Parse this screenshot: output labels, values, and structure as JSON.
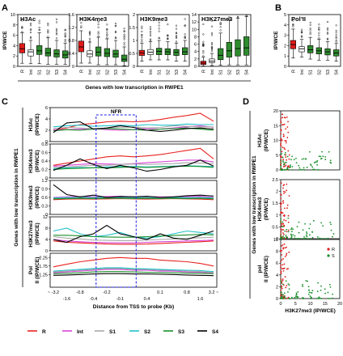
{
  "panels": {
    "A": {
      "letter": "A"
    },
    "B": {
      "letter": "B"
    },
    "C": {
      "letter": "C"
    },
    "D": {
      "letter": "D"
    }
  },
  "colors": {
    "R": "#e8231f",
    "Int": "#d946d9",
    "S1": "#a8a8a8",
    "S2": "#22c1c8",
    "S3": "#1a8f2b",
    "S4": "#000000",
    "box_R": "#e01b1b",
    "box_Int": "#ffffff",
    "box_S": "#2e8b2e"
  },
  "chart_data": [
    {
      "type": "box",
      "panel": "A",
      "group_label": "Genes with low transcription in RWPE1",
      "ylabel": "IP/WCE",
      "categories": [
        "R",
        "Int",
        "S1",
        "S2",
        "S3",
        "S4"
      ],
      "plots": [
        {
          "title": "H3Ac",
          "ylim": [
            0,
            10
          ],
          "yticks": [
            0,
            2,
            4,
            6,
            8,
            10
          ],
          "boxes": [
            {
              "q1": 2.6,
              "med": 3.4,
              "q3": 4.4,
              "lo": 0.6,
              "hi": 6.5
            },
            {
              "q1": 2.0,
              "med": 2.8,
              "q3": 3.2,
              "lo": 0.5,
              "hi": 5.0
            },
            {
              "q1": 2.3,
              "med": 3.0,
              "q3": 4.0,
              "lo": 0.5,
              "hi": 6.5
            },
            {
              "q1": 2.0,
              "med": 2.6,
              "q3": 3.5,
              "lo": 0.4,
              "hi": 5.5
            },
            {
              "q1": 1.8,
              "med": 2.4,
              "q3": 3.2,
              "lo": 0.4,
              "hi": 5.0
            },
            {
              "q1": 1.6,
              "med": 2.2,
              "q3": 3.0,
              "lo": 0.4,
              "hi": 4.5
            }
          ]
        },
        {
          "title": "H3K4me3",
          "ylim": [
            0,
            1.6
          ],
          "yticks": [
            0,
            0.4,
            0.8,
            1.2,
            1.6
          ],
          "boxes": [
            {
              "q1": 0.45,
              "med": 0.6,
              "q3": 0.78,
              "lo": 0.1,
              "hi": 1.1
            },
            {
              "q1": 0.3,
              "med": 0.38,
              "q3": 0.48,
              "lo": 0.1,
              "hi": 0.75
            },
            {
              "q1": 0.32,
              "med": 0.44,
              "q3": 0.6,
              "lo": 0.05,
              "hi": 0.9
            },
            {
              "q1": 0.3,
              "med": 0.4,
              "q3": 0.55,
              "lo": 0.05,
              "hi": 0.85
            },
            {
              "q1": 0.28,
              "med": 0.38,
              "q3": 0.5,
              "lo": 0.05,
              "hi": 0.8
            },
            {
              "q1": 0.15,
              "med": 0.22,
              "q3": 0.35,
              "lo": 0.02,
              "hi": 0.6
            }
          ]
        },
        {
          "title": "H3K9me3",
          "ylim": [
            0,
            2
          ],
          "yticks": [
            0,
            0.5,
            1.0,
            1.5,
            2.0
          ],
          "boxes": [
            {
              "q1": 0.42,
              "med": 0.52,
              "q3": 0.62,
              "lo": 0.2,
              "hi": 0.9
            },
            {
              "q1": 0.45,
              "med": 0.55,
              "q3": 0.65,
              "lo": 0.25,
              "hi": 0.95
            },
            {
              "q1": 0.45,
              "med": 0.58,
              "q3": 0.7,
              "lo": 0.25,
              "hi": 1.0
            },
            {
              "q1": 0.45,
              "med": 0.56,
              "q3": 0.68,
              "lo": 0.25,
              "hi": 0.95
            },
            {
              "q1": 0.42,
              "med": 0.54,
              "q3": 0.65,
              "lo": 0.2,
              "hi": 0.9
            },
            {
              "q1": 0.45,
              "med": 0.56,
              "q3": 0.72,
              "lo": 0.2,
              "hi": 1.0
            }
          ]
        },
        {
          "title": "H3K27me3",
          "ylim": [
            0,
            14
          ],
          "yticks": [
            0,
            2,
            4,
            6,
            8,
            10,
            12,
            14
          ],
          "boxes": [
            {
              "q1": 0.5,
              "med": 0.9,
              "q3": 1.4,
              "lo": 0.1,
              "hi": 2.5
            },
            {
              "q1": 1.0,
              "med": 1.4,
              "q3": 2.0,
              "lo": 0.2,
              "hi": 3.5
            },
            {
              "q1": 1.8,
              "med": 3.0,
              "q3": 4.8,
              "lo": 0.3,
              "hi": 9.0
            },
            {
              "q1": 2.5,
              "med": 4.2,
              "q3": 6.5,
              "lo": 0.4,
              "hi": 12.5
            },
            {
              "q1": 2.8,
              "med": 4.8,
              "q3": 7.2,
              "lo": 0.4,
              "hi": 13.0
            },
            {
              "q1": 3.0,
              "med": 5.0,
              "q3": 8.0,
              "lo": 0.4,
              "hi": 13.5
            }
          ]
        }
      ]
    },
    {
      "type": "box",
      "panel": "B",
      "ylabel": "IP/WCE",
      "categories": [
        "R",
        "Int",
        "S1",
        "S2",
        "S3",
        "S4"
      ],
      "plots": [
        {
          "title": "Pol II",
          "ylim": [
            0,
            5
          ],
          "yticks": [
            0,
            1,
            2,
            3,
            4,
            5
          ],
          "boxes": [
            {
              "q1": 1.7,
              "med": 2.1,
              "q3": 2.5,
              "lo": 0.8,
              "hi": 3.6
            },
            {
              "q1": 1.4,
              "med": 1.7,
              "q3": 1.9,
              "lo": 0.9,
              "hi": 2.6
            },
            {
              "q1": 1.3,
              "med": 1.6,
              "q3": 2.0,
              "lo": 0.7,
              "hi": 2.8
            },
            {
              "q1": 1.2,
              "med": 1.5,
              "q3": 1.8,
              "lo": 0.6,
              "hi": 2.6
            },
            {
              "q1": 1.1,
              "med": 1.4,
              "q3": 1.7,
              "lo": 0.6,
              "hi": 2.4
            },
            {
              "q1": 1.0,
              "med": 1.3,
              "q3": 1.6,
              "lo": 0.5,
              "hi": 2.2
            }
          ]
        }
      ]
    },
    {
      "type": "line",
      "panel": "C",
      "group_label": "Genes with low transcription in RWPE1",
      "xlabel": "Distance from TSS to probe (Kb)",
      "xticks_top": [
        "~ -3.2",
        "-0.8",
        "-0.2",
        "0.1",
        "0.8",
        "3.2 ~"
      ],
      "xticks_bottom": [
        "-1.6",
        "-0.4",
        "-0.1",
        "0.4",
        "1.6"
      ],
      "nfr_label": "NFR",
      "legend": [
        "R",
        "Int",
        "S1",
        "S2",
        "S3",
        "S4"
      ],
      "plots": [
        {
          "ylabel": "H3Ac (IP/WCE)",
          "ylim": [
            0,
            6
          ],
          "yticks": [
            0,
            2,
            4,
            6
          ],
          "series": {
            "R": [
              2.0,
              2.4,
              3.0,
              3.2,
              3.5,
              3.6,
              3.5,
              3.6,
              3.9,
              4.3,
              4.6,
              5.0,
              3.6
            ],
            "Int": [
              2.1,
              2.1,
              2.2,
              2.3,
              2.1,
              2.0,
              2.1,
              2.3,
              2.2,
              2.4,
              2.6,
              2.8,
              2.5
            ],
            "S1": [
              2.3,
              2.5,
              2.4,
              2.3,
              2.4,
              2.5,
              2.6,
              2.4,
              2.5,
              2.8,
              2.7,
              2.6,
              2.6
            ],
            "S2": [
              2.6,
              2.8,
              2.9,
              2.7,
              2.8,
              2.9,
              2.8,
              3.0,
              2.9,
              2.9,
              3.1,
              3.0,
              3.0
            ],
            "S3": [
              1.9,
              2.1,
              2.0,
              2.2,
              2.3,
              2.2,
              2.1,
              2.0,
              2.2,
              2.3,
              2.4,
              2.2,
              2.0
            ],
            "S4": [
              1.6,
              3.3,
              3.5,
              2.2,
              2.4,
              2.8,
              2.5,
              2.0,
              1.8,
              2.0,
              2.3,
              2.4,
              2.2
            ]
          }
        },
        {
          "ylabel": "H3K4me3 (IP/WCE)",
          "ylim": [
            0,
            0.8
          ],
          "yticks": [
            0,
            0.2,
            0.4,
            0.6,
            0.8
          ],
          "series": {
            "R": [
              0.3,
              0.35,
              0.4,
              0.45,
              0.5,
              0.52,
              0.5,
              0.52,
              0.55,
              0.6,
              0.65,
              0.7,
              0.45
            ],
            "Int": [
              0.28,
              0.3,
              0.32,
              0.34,
              0.33,
              0.32,
              0.34,
              0.36,
              0.38,
              0.4,
              0.42,
              0.42,
              0.38
            ],
            "S1": [
              0.25,
              0.26,
              0.28,
              0.3,
              0.3,
              0.32,
              0.33,
              0.32,
              0.33,
              0.34,
              0.36,
              0.35,
              0.34
            ],
            "S2": [
              0.22,
              0.24,
              0.25,
              0.24,
              0.26,
              0.27,
              0.27,
              0.26,
              0.27,
              0.28,
              0.29,
              0.28,
              0.27
            ],
            "S3": [
              0.2,
              0.22,
              0.23,
              0.24,
              0.24,
              0.25,
              0.26,
              0.25,
              0.26,
              0.27,
              0.28,
              0.27,
              0.25
            ],
            "S4": [
              0.18,
              0.3,
              0.45,
              0.32,
              0.22,
              0.3,
              0.24,
              0.16,
              0.2,
              0.26,
              0.3,
              0.42,
              0.28
            ]
          }
        },
        {
          "ylabel": "H3K9me3 (IP/WCE)",
          "ylim": [
            0,
            1.2
          ],
          "yticks": [
            0,
            0.3,
            0.6,
            0.9,
            1.2
          ],
          "series": {
            "R": [
              0.52,
              0.54,
              0.55,
              0.54,
              0.55,
              0.56,
              0.55,
              0.54,
              0.55,
              0.56,
              0.55,
              0.54,
              0.52
            ],
            "Int": [
              0.6,
              0.62,
              0.63,
              0.62,
              0.63,
              0.64,
              0.62,
              0.63,
              0.62,
              0.62,
              0.63,
              0.64,
              0.6
            ],
            "S1": [
              0.56,
              0.57,
              0.58,
              0.57,
              0.58,
              0.58,
              0.57,
              0.58,
              0.58,
              0.57,
              0.58,
              0.58,
              0.56
            ],
            "S2": [
              0.58,
              0.6,
              0.59,
              0.6,
              0.6,
              0.61,
              0.6,
              0.59,
              0.6,
              0.6,
              0.59,
              0.6,
              0.58
            ],
            "S3": [
              0.55,
              0.56,
              0.57,
              0.56,
              0.57,
              0.57,
              0.56,
              0.57,
              0.56,
              0.57,
              0.56,
              0.57,
              0.55
            ],
            "S4": [
              1.05,
              0.7,
              0.62,
              0.68,
              0.6,
              0.63,
              0.62,
              0.64,
              0.6,
              0.62,
              0.66,
              0.68,
              0.65
            ]
          }
        },
        {
          "ylabel": "H3K27me3 (IP/WCE)",
          "ylim": [
            0,
            12
          ],
          "yticks": [
            0,
            4,
            8,
            12
          ],
          "series": {
            "R": [
              3.5,
              3.0,
              2.8,
              2.6,
              2.4,
              2.3,
              2.3,
              2.4,
              2.6,
              2.8,
              3.0,
              3.2,
              3.5
            ],
            "Int": [
              4.0,
              3.5,
              3.2,
              3.0,
              2.9,
              2.8,
              2.8,
              3.0,
              3.2,
              3.3,
              3.5,
              3.6,
              3.8
            ],
            "S1": [
              5.0,
              4.5,
              4.2,
              3.8,
              3.7,
              3.6,
              3.6,
              3.8,
              4.0,
              4.2,
              4.4,
              4.6,
              4.8
            ],
            "S2": [
              7.0,
              8.0,
              6.0,
              5.0,
              5.5,
              6.5,
              5.0,
              4.5,
              5.0,
              6.0,
              7.0,
              6.5,
              6.0
            ],
            "S3": [
              5.5,
              5.5,
              5.3,
              5.0,
              4.9,
              4.8,
              4.8,
              5.0,
              5.2,
              5.4,
              5.6,
              5.8,
              5.6
            ],
            "S4": [
              4.0,
              3.0,
              5.0,
              6.0,
              9.0,
              6.0,
              5.0,
              4.0,
              6.0,
              4.5,
              4.0,
              5.5,
              7.0
            ]
          }
        },
        {
          "ylabel": "Pol II (IP/WCE)",
          "ylim": [
            0.5,
            2.5
          ],
          "yticks": [
            1.25,
            1.75,
            2.25
          ],
          "series": {
            "R": [
              1.7,
              1.85,
              2.0,
              2.1,
              2.2,
              2.25,
              2.2,
              2.2,
              2.1,
              2.05,
              2.0,
              1.9,
              1.75
            ],
            "Int": [
              1.35,
              1.4,
              1.45,
              1.5,
              1.55,
              1.55,
              1.5,
              1.5,
              1.45,
              1.45,
              1.4,
              1.38,
              1.32
            ],
            "S1": [
              1.4,
              1.45,
              1.5,
              1.55,
              1.6,
              1.6,
              1.55,
              1.55,
              1.5,
              1.5,
              1.45,
              1.42,
              1.38
            ],
            "S2": [
              1.45,
              1.5,
              1.55,
              1.6,
              1.65,
              1.65,
              1.6,
              1.58,
              1.55,
              1.52,
              1.5,
              1.48,
              1.42
            ],
            "S3": [
              1.3,
              1.32,
              1.35,
              1.4,
              1.42,
              1.42,
              1.4,
              1.38,
              1.36,
              1.35,
              1.33,
              1.32,
              1.3
            ],
            "S4": [
              1.2,
              1.22,
              1.25,
              1.28,
              1.3,
              1.3,
              1.28,
              1.28,
              1.26,
              1.25,
              1.22,
              1.2,
              1.18
            ]
          }
        }
      ]
    },
    {
      "type": "scatter",
      "panel": "D",
      "group_label": "Genes with low transcription in RWPE1",
      "xlabel": "H3K27me3 (IP/WCE)",
      "xlim": [
        0,
        20
      ],
      "xticks": [
        0,
        5,
        10,
        15,
        20
      ],
      "legend": [
        "R",
        "S"
      ],
      "plots": [
        {
          "ylabel": "H3Ac (IP/WCE)",
          "ylim": [
            0,
            20
          ],
          "yticks": [
            0,
            5,
            10,
            15,
            20
          ]
        },
        {
          "ylabel": "H3K4me3 (IP/WCE)",
          "ylim": [
            0,
            2.5
          ],
          "yticks": [
            0,
            0.5,
            1.0,
            1.5,
            2.0,
            2.5
          ]
        },
        {
          "ylabel": "pol II (IP/WCE)",
          "ylim": [
            0,
            10
          ],
          "yticks": [
            0,
            2,
            4,
            6,
            8,
            10
          ]
        }
      ]
    }
  ]
}
